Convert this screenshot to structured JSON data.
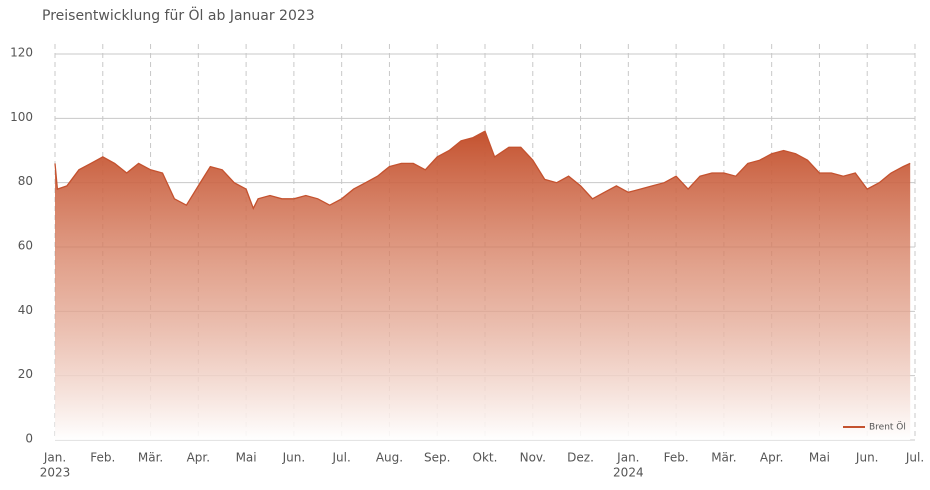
{
  "chart_data": {
    "type": "area",
    "title": "Preisentwicklung für Öl ab Januar 2023",
    "xlim": [
      0,
      18
    ],
    "xticks": [
      {
        "value": 0,
        "label": "Jan."
      },
      {
        "value": 1,
        "label": "Feb."
      },
      {
        "value": 2,
        "label": "Mär."
      },
      {
        "value": 3,
        "label": "Apr."
      },
      {
        "value": 4,
        "label": "Mai"
      },
      {
        "value": 5,
        "label": "Jun."
      },
      {
        "value": 6,
        "label": "Jul."
      },
      {
        "value": 7,
        "label": "Aug."
      },
      {
        "value": 8,
        "label": "Sep."
      },
      {
        "value": 9,
        "label": "Okt."
      },
      {
        "value": 10,
        "label": "Nov."
      },
      {
        "value": 11,
        "label": "Dez."
      },
      {
        "value": 12,
        "label": "Jan."
      },
      {
        "value": 13,
        "label": "Feb."
      },
      {
        "value": 14,
        "label": "Mär."
      },
      {
        "value": 15,
        "label": "Apr."
      },
      {
        "value": 16,
        "label": "Mai"
      },
      {
        "value": 17,
        "label": "Jun."
      },
      {
        "value": 18,
        "label": "Jul."
      }
    ],
    "year_labels": [
      {
        "value": 0,
        "label": "2023"
      },
      {
        "value": 12,
        "label": "2024"
      }
    ],
    "ylim": [
      0,
      120
    ],
    "yticks": [
      0,
      20,
      40,
      60,
      80,
      100,
      120
    ],
    "grid": true,
    "legend_position": "lower right",
    "x": [
      0,
      0.05,
      0.25,
      0.5,
      0.75,
      1,
      1.25,
      1.5,
      1.75,
      2,
      2.25,
      2.5,
      2.75,
      3,
      3.25,
      3.5,
      3.75,
      4,
      4.15,
      4.25,
      4.5,
      4.75,
      5,
      5.25,
      5.5,
      5.75,
      6,
      6.25,
      6.5,
      6.75,
      7,
      7.25,
      7.5,
      7.75,
      8,
      8.25,
      8.5,
      8.75,
      9,
      9.2,
      9.5,
      9.75,
      10,
      10.25,
      10.5,
      10.75,
      11,
      11.25,
      11.5,
      11.75,
      12,
      12.25,
      12.5,
      12.75,
      13,
      13.25,
      13.5,
      13.75,
      14,
      14.25,
      14.5,
      14.75,
      15,
      15.25,
      15.5,
      15.75,
      16,
      16.25,
      16.5,
      16.75,
      17,
      17.25,
      17.5,
      17.75,
      17.9
    ],
    "series": [
      {
        "name": "Brent Öl",
        "color": "#c4522f",
        "values": [
          86,
          78,
          79,
          84,
          86,
          88,
          86,
          83,
          86,
          84,
          83,
          75,
          73,
          79,
          85,
          84,
          80,
          78,
          72,
          75,
          76,
          75,
          75,
          76,
          75,
          73,
          75,
          78,
          80,
          82,
          85,
          86,
          86,
          84,
          88,
          90,
          93,
          94,
          96,
          88,
          91,
          91,
          87,
          81,
          80,
          82,
          79,
          75,
          77,
          79,
          77,
          78,
          79,
          80,
          82,
          78,
          82,
          83,
          83,
          82,
          86,
          87,
          89,
          90,
          89,
          87,
          83,
          83,
          82,
          83,
          78,
          80,
          83,
          85,
          86
        ]
      }
    ]
  }
}
